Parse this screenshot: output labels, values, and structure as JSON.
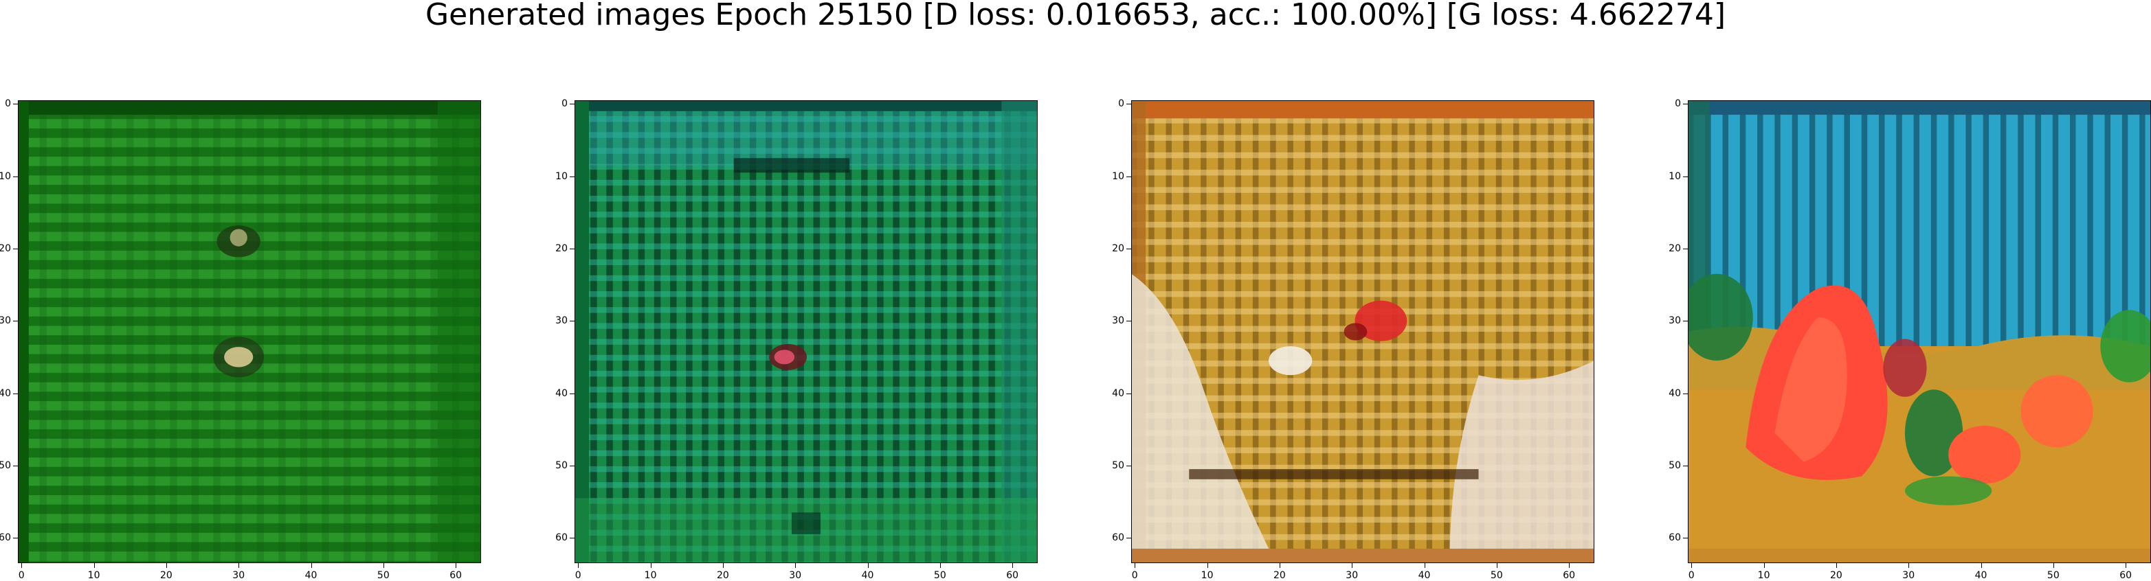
{
  "figure": {
    "title": "Generated images Epoch 25150 [D loss: 0.016653, acc.: 100.00%] [G loss: 4.662274]"
  },
  "axis": {
    "x_ticks": [
      "0",
      "10",
      "20",
      "30",
      "40",
      "50",
      "60"
    ],
    "y_ticks": [
      "0",
      "10",
      "20",
      "30",
      "40",
      "50",
      "60"
    ]
  },
  "panels": [
    {
      "id": "panel-1",
      "description_colors": {
        "base": "#1e8a1e",
        "dark": "#0b4a0b",
        "light": "#3fb13f",
        "accent": "#c9c08a"
      }
    },
    {
      "id": "panel-2",
      "description_colors": {
        "base": "#178a4a",
        "dark": "#063a22",
        "light": "#2fc0a0",
        "accent": "#c23a4a"
      }
    },
    {
      "id": "panel-3",
      "description_colors": {
        "base": "#c8962a",
        "dark": "#6b4a10",
        "light": "#e8d6b4",
        "accent": "#e0282a"
      }
    },
    {
      "id": "panel-4",
      "description_colors": {
        "base": "#2a9ec0",
        "dark": "#0c3a4e",
        "light": "#ff5a4a",
        "accent": "#2c9a34"
      }
    }
  ]
}
